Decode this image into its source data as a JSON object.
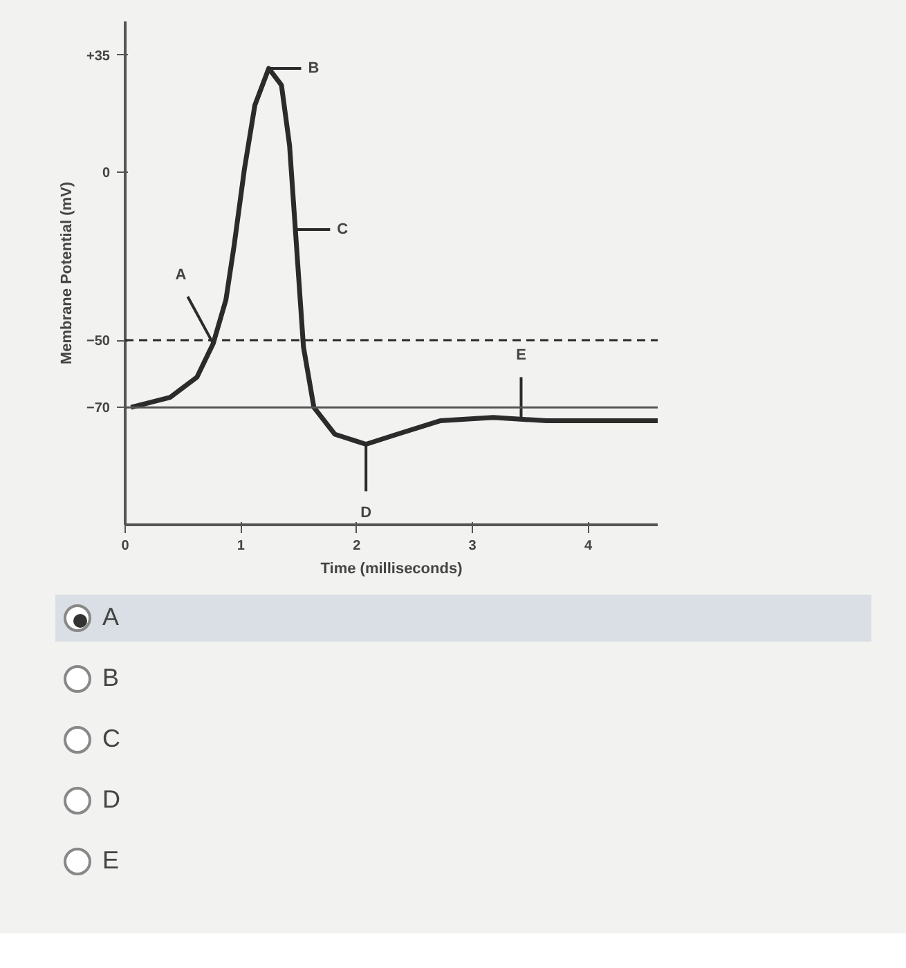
{
  "chart_data": {
    "type": "line",
    "xlabel": "Time (milliseconds)",
    "ylabel": "Membrane Potential (mV)",
    "x": [
      0.05,
      0.39,
      0.62,
      0.76,
      0.87,
      0.94,
      1.03,
      1.12,
      1.24,
      1.35,
      1.42,
      1.47,
      1.54,
      1.63,
      1.81,
      2.08,
      2.35,
      2.72,
      3.18,
      3.64,
      4.6
    ],
    "series": [
      {
        "color": "#2b2b2b",
        "values": [
          -70,
          -67,
          -61,
          -51,
          -38,
          -22,
          1,
          20,
          31,
          26,
          8,
          -17,
          -52,
          -70,
          -78,
          -81,
          -78,
          -74,
          -73,
          -74,
          -74
        ]
      }
    ],
    "xlim": [
      0,
      4.6
    ],
    "ylim": [
      -105,
      45
    ],
    "xticks": [
      0,
      1,
      2,
      3,
      4
    ],
    "yticks": [
      {
        "value": 35,
        "label": "+35"
      },
      0,
      -50,
      -70
    ],
    "ref_lines": [
      {
        "axis": "y",
        "value": -50,
        "line_style": "dashed",
        "color": "#2b2b2b"
      },
      {
        "axis": "y",
        "value": -70,
        "line_style": "solid",
        "color": "#555555"
      }
    ],
    "grid": false,
    "marker": "none",
    "line_style": "solid",
    "annotations": [
      {
        "text": "A",
        "x": 0.76,
        "y": -51
      },
      {
        "text": "B",
        "x": 1.24,
        "y": 31
      },
      {
        "text": "C",
        "x": 1.47,
        "y": -17
      },
      {
        "text": "D",
        "x": 2.08,
        "y": -81
      },
      {
        "text": "E",
        "x": 3.42,
        "y": -73
      },
      "A",
      "B",
      "C",
      "D",
      "E"
    ]
  }
}
